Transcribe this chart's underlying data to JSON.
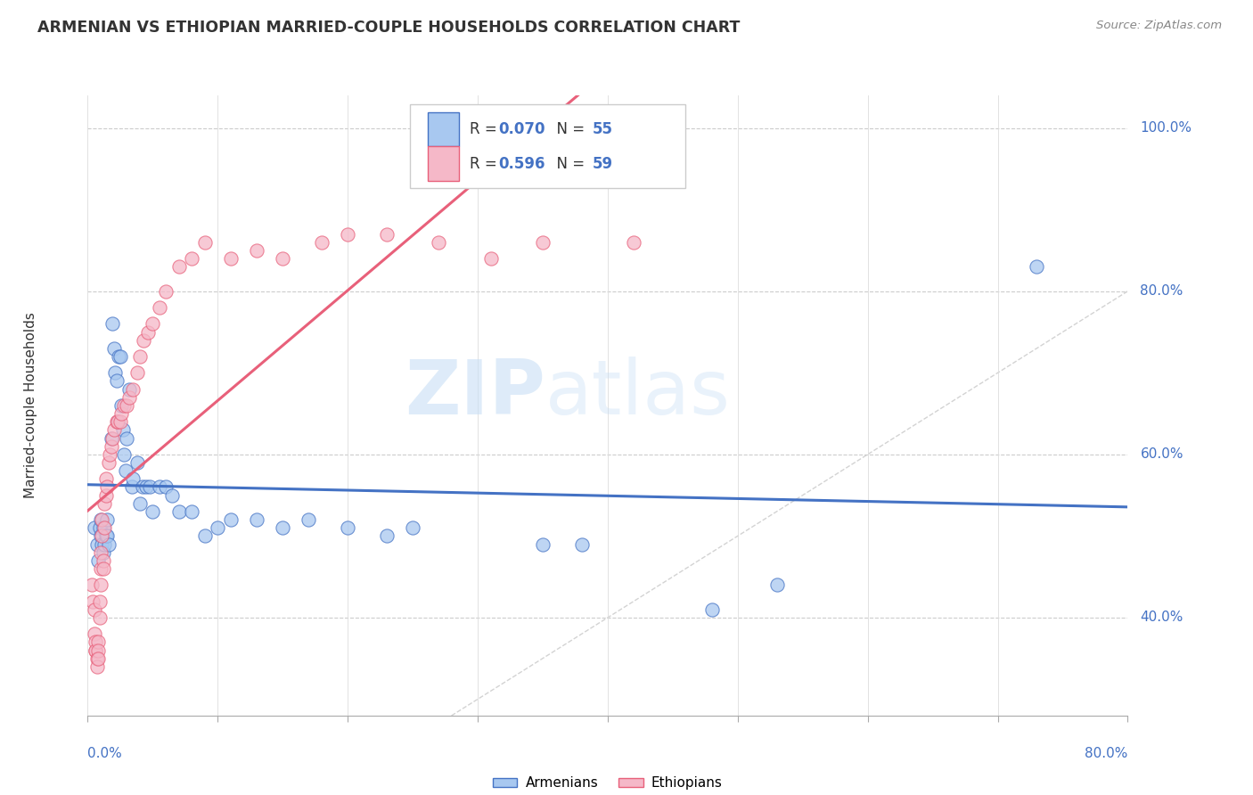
{
  "title": "ARMENIAN VS ETHIOPIAN MARRIED-COUPLE HOUSEHOLDS CORRELATION CHART",
  "source": "Source: ZipAtlas.com",
  "ylabel": "Married-couple Households",
  "legend_armenian": {
    "R": "0.070",
    "N": "55"
  },
  "legend_ethiopian": {
    "R": "0.596",
    "N": "59"
  },
  "armenian_color": "#a8c8f0",
  "ethiopian_color": "#f5b8c8",
  "armenian_line_color": "#4472c4",
  "ethiopian_line_color": "#e8607a",
  "diagonal_color": "#c8c8c8",
  "watermark_zip": "ZIP",
  "watermark_atlas": "atlas",
  "xmin": 0.0,
  "xmax": 0.8,
  "ymin": 0.28,
  "ymax": 1.04,
  "armenian_x": [
    0.005,
    0.007,
    0.008,
    0.009,
    0.01,
    0.01,
    0.011,
    0.012,
    0.012,
    0.013,
    0.014,
    0.015,
    0.015,
    0.016,
    0.018,
    0.019,
    0.02,
    0.021,
    0.022,
    0.023,
    0.024,
    0.025,
    0.026,
    0.027,
    0.028,
    0.029,
    0.03,
    0.032,
    0.034,
    0.035,
    0.038,
    0.04,
    0.042,
    0.045,
    0.048,
    0.05,
    0.055,
    0.06,
    0.065,
    0.07,
    0.08,
    0.09,
    0.1,
    0.11,
    0.13,
    0.15,
    0.17,
    0.2,
    0.23,
    0.25,
    0.35,
    0.38,
    0.48,
    0.53,
    0.73
  ],
  "armenian_y": [
    0.51,
    0.49,
    0.47,
    0.51,
    0.5,
    0.52,
    0.49,
    0.48,
    0.51,
    0.49,
    0.5,
    0.52,
    0.5,
    0.49,
    0.62,
    0.76,
    0.73,
    0.7,
    0.69,
    0.64,
    0.72,
    0.72,
    0.66,
    0.63,
    0.6,
    0.58,
    0.62,
    0.68,
    0.56,
    0.57,
    0.59,
    0.54,
    0.56,
    0.56,
    0.56,
    0.53,
    0.56,
    0.56,
    0.55,
    0.53,
    0.53,
    0.5,
    0.51,
    0.52,
    0.52,
    0.51,
    0.52,
    0.51,
    0.5,
    0.51,
    0.49,
    0.49,
    0.41,
    0.44,
    0.83
  ],
  "ethiopian_x": [
    0.003,
    0.004,
    0.005,
    0.005,
    0.006,
    0.006,
    0.006,
    0.007,
    0.007,
    0.008,
    0.008,
    0.008,
    0.009,
    0.009,
    0.01,
    0.01,
    0.01,
    0.011,
    0.011,
    0.012,
    0.012,
    0.013,
    0.013,
    0.014,
    0.014,
    0.015,
    0.016,
    0.017,
    0.018,
    0.019,
    0.02,
    0.022,
    0.023,
    0.025,
    0.026,
    0.028,
    0.03,
    0.032,
    0.035,
    0.038,
    0.04,
    0.043,
    0.046,
    0.05,
    0.055,
    0.06,
    0.07,
    0.08,
    0.09,
    0.11,
    0.13,
    0.15,
    0.18,
    0.2,
    0.23,
    0.27,
    0.31,
    0.35,
    0.42
  ],
  "ethiopian_y": [
    0.44,
    0.42,
    0.41,
    0.38,
    0.36,
    0.37,
    0.36,
    0.35,
    0.34,
    0.37,
    0.36,
    0.35,
    0.42,
    0.4,
    0.44,
    0.46,
    0.48,
    0.5,
    0.52,
    0.47,
    0.46,
    0.54,
    0.51,
    0.55,
    0.57,
    0.56,
    0.59,
    0.6,
    0.61,
    0.62,
    0.63,
    0.64,
    0.64,
    0.64,
    0.65,
    0.66,
    0.66,
    0.67,
    0.68,
    0.7,
    0.72,
    0.74,
    0.75,
    0.76,
    0.78,
    0.8,
    0.83,
    0.84,
    0.86,
    0.84,
    0.85,
    0.84,
    0.86,
    0.87,
    0.87,
    0.86,
    0.84,
    0.86,
    0.86
  ]
}
